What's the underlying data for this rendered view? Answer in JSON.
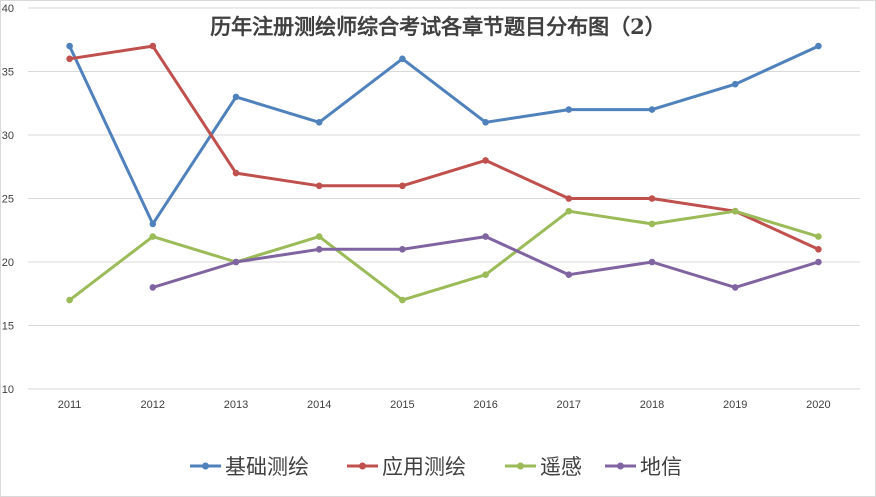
{
  "chart_data": {
    "type": "line",
    "title": "历年注册测绘师综合考试各章节题目分布图（2）",
    "xlabel": "",
    "ylabel": "",
    "categories": [
      "2011",
      "2012",
      "2013",
      "2014",
      "2015",
      "2016",
      "2017",
      "2018",
      "2019",
      "2020"
    ],
    "ylim": [
      10,
      40
    ],
    "yticks": [
      10,
      15,
      20,
      25,
      30,
      35,
      40
    ],
    "grid": true,
    "legend_position": "bottom",
    "series": [
      {
        "name": "基础测绘",
        "color": "#4f81bd",
        "values": [
          37,
          23,
          33,
          31,
          36,
          31,
          32,
          32,
          34,
          37
        ]
      },
      {
        "name": "应用测绘",
        "color": "#c0504d",
        "values": [
          36,
          37,
          27,
          26,
          26,
          28,
          25,
          25,
          24,
          21
        ]
      },
      {
        "name": "遥感",
        "color": "#9bbb59",
        "values": [
          17,
          22,
          20,
          22,
          17,
          19,
          24,
          23,
          24,
          22
        ]
      },
      {
        "name": "地信",
        "color": "#8064a2",
        "values": [
          null,
          18,
          20,
          21,
          21,
          22,
          19,
          20,
          18,
          20
        ]
      }
    ]
  }
}
